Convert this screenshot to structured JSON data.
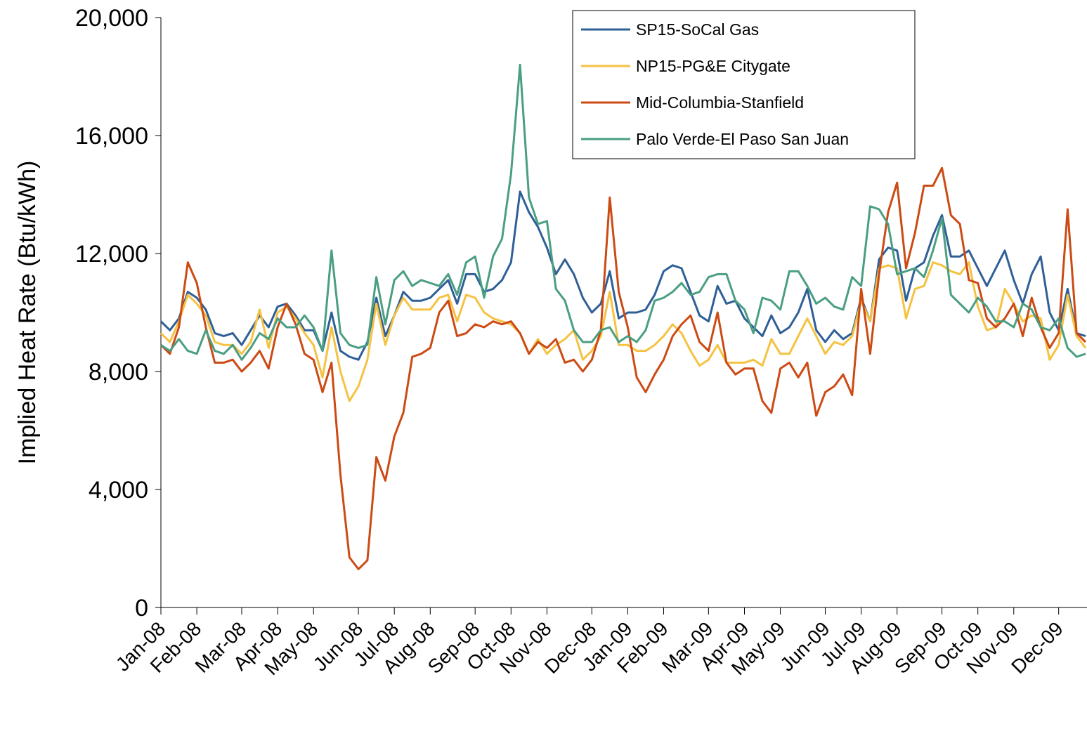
{
  "chart_data": {
    "type": "line",
    "y_label": "Implied Heat Rate (Btu/kWh)",
    "categories": [
      "Jan-08",
      null,
      null,
      null,
      "Feb-08",
      null,
      null,
      null,
      null,
      "Mar-08",
      null,
      null,
      null,
      "Apr-08",
      null,
      null,
      null,
      "May-08",
      null,
      null,
      null,
      null,
      "Jun-08",
      null,
      null,
      null,
      "Jul-08",
      null,
      null,
      null,
      "Aug-08",
      null,
      null,
      null,
      null,
      "Sep-08",
      null,
      null,
      null,
      "Oct-08",
      null,
      null,
      null,
      "Nov-08",
      null,
      null,
      null,
      null,
      "Dec-08",
      null,
      null,
      null,
      "Jan-09",
      null,
      null,
      null,
      "Feb-09",
      null,
      null,
      null,
      null,
      "Mar-09",
      null,
      null,
      null,
      "Apr-09",
      null,
      null,
      null,
      "May-09",
      null,
      null,
      null,
      null,
      "Jun-09",
      null,
      null,
      null,
      "Jul-09",
      null,
      null,
      null,
      "Aug-09",
      null,
      null,
      null,
      null,
      "Sep-09",
      null,
      null,
      null,
      "Oct-09",
      null,
      null,
      null,
      "Nov-09",
      null,
      null,
      null,
      null,
      "Dec-09",
      null,
      null,
      null
    ],
    "series": [
      {
        "name": "SP15-SoCal Gas",
        "color": "#2e5f96",
        "values": [
          9700,
          9400,
          9800,
          10700,
          10500,
          10100,
          9300,
          9200,
          9300,
          8900,
          9400,
          9900,
          9500,
          10200,
          10300,
          9900,
          9400,
          9400,
          8700,
          10000,
          8700,
          8500,
          8400,
          9000,
          10500,
          9200,
          9900,
          10700,
          10400,
          10400,
          10500,
          10800,
          11100,
          10300,
          11300,
          11300,
          10700,
          10800,
          11100,
          11700,
          14100,
          13400,
          12900,
          12200,
          11300,
          11800,
          11300,
          10500,
          10000,
          10300,
          11400,
          9800,
          10000,
          10000,
          10100,
          10600,
          11400,
          11600,
          11500,
          10700,
          9900,
          9700,
          10900,
          10300,
          10400,
          9800,
          9500,
          9200,
          9900,
          9300,
          9500,
          10000,
          10800,
          9400,
          9000,
          9400,
          9100,
          9300,
          10500,
          9700,
          11800,
          12200,
          12100,
          10400,
          11500,
          11700,
          12600,
          13300,
          11900,
          11900,
          12100,
          11500,
          10900,
          11500,
          12100,
          11100,
          10300,
          11300,
          11900,
          10000,
          9400,
          10800,
          9300,
          9200
        ]
      },
      {
        "name": "NP15-PG&E Citygate",
        "color": "#f5c242",
        "values": [
          9300,
          9000,
          9700,
          10600,
          10300,
          9900,
          9000,
          8900,
          8900,
          8600,
          9000,
          10100,
          8800,
          10000,
          10200,
          9800,
          9300,
          8900,
          7800,
          9500,
          8000,
          7000,
          7500,
          8400,
          10300,
          8900,
          9900,
          10500,
          10100,
          10100,
          10100,
          10500,
          10600,
          9700,
          10600,
          10500,
          10000,
          9800,
          9700,
          9600,
          9300,
          8600,
          9100,
          8600,
          8900,
          9100,
          9400,
          8400,
          8700,
          9200,
          10700,
          8900,
          8900,
          8700,
          8700,
          8900,
          9200,
          9600,
          9300,
          8700,
          8200,
          8400,
          8900,
          8300,
          8300,
          8300,
          8400,
          8200,
          9100,
          8600,
          8600,
          9200,
          9800,
          9200,
          8600,
          9000,
          8900,
          9200,
          10400,
          9700,
          11500,
          11600,
          11500,
          9800,
          10800,
          10900,
          11700,
          11600,
          11400,
          11300,
          11700,
          10200,
          9400,
          9500,
          10800,
          10300,
          9700,
          9900,
          9800,
          8400,
          8900,
          10600,
          9200,
          8800
        ]
      },
      {
        "name": "Mid-Columbia-Stanfield",
        "color": "#cc4a14",
        "values": [
          8900,
          8600,
          9500,
          11700,
          11000,
          9500,
          8300,
          8300,
          8400,
          8000,
          8300,
          8700,
          8100,
          9500,
          10300,
          9600,
          8600,
          8400,
          7300,
          8300,
          4500,
          1700,
          1300,
          1600,
          5100,
          4300,
          5800,
          6600,
          8500,
          8600,
          8800,
          10000,
          10400,
          9200,
          9300,
          9600,
          9500,
          9700,
          9600,
          9700,
          9300,
          8600,
          9000,
          8800,
          9100,
          8300,
          8400,
          8000,
          8400,
          9400,
          13900,
          10700,
          9500,
          7800,
          7300,
          7900,
          8400,
          9200,
          9600,
          9900,
          9000,
          8700,
          10000,
          8300,
          7900,
          8100,
          8100,
          7000,
          6600,
          8100,
          8300,
          7800,
          8300,
          6500,
          7300,
          7500,
          7900,
          7200,
          10800,
          8600,
          11300,
          13400,
          14400,
          11500,
          12700,
          14300,
          14300,
          14900,
          13300,
          13000,
          11100,
          11000,
          9800,
          9500,
          9800,
          10300,
          9200,
          10500,
          9500,
          8800,
          9300,
          13500,
          9300,
          9000
        ]
      },
      {
        "name": "Palo Verde-El Paso San Juan",
        "color": "#4a9e82",
        "values": [
          8900,
          8700,
          9100,
          8700,
          8600,
          9400,
          8700,
          8600,
          8900,
          8400,
          8800,
          9300,
          9100,
          9800,
          9500,
          9500,
          9900,
          9500,
          8700,
          12100,
          9300,
          8900,
          8800,
          8900,
          11200,
          9600,
          11100,
          11400,
          10900,
          11100,
          11000,
          10900,
          11300,
          10600,
          11700,
          11900,
          10500,
          11900,
          12500,
          14700,
          18400,
          13900,
          13000,
          13100,
          10800,
          10400,
          9400,
          9000,
          9000,
          9400,
          9500,
          9000,
          9200,
          9000,
          9400,
          10400,
          10500,
          10700,
          11000,
          10600,
          10700,
          11200,
          11300,
          11300,
          10400,
          10100,
          9300,
          10500,
          10400,
          10100,
          11400,
          11400,
          10900,
          10300,
          10500,
          10200,
          10100,
          11200,
          10900,
          13600,
          13500,
          13000,
          11300,
          11400,
          11500,
          11200,
          12100,
          13200,
          10600,
          10300,
          10000,
          10500,
          10200,
          9700,
          9700,
          9500,
          10300,
          10100,
          9500,
          9400,
          9800,
          8800,
          8500,
          8600
        ]
      }
    ],
    "ylim": [
      0,
      20000
    ],
    "yticks": [
      0,
      {
        "value": 4000,
        "label": "4,000"
      },
      {
        "value": 8000,
        "label": "8,000"
      },
      {
        "value": 12000,
        "label": "12,000"
      },
      {
        "value": 16000,
        "label": "16,000"
      },
      {
        "value": 20000,
        "label": "20,000"
      }
    ],
    "grid": false,
    "legend": "top-right"
  }
}
